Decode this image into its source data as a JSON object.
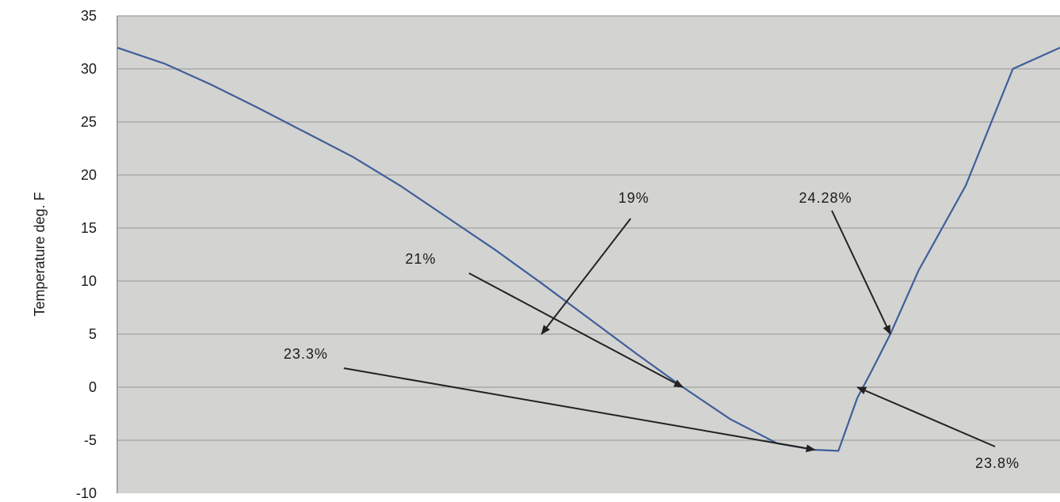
{
  "chart_data": {
    "type": "line",
    "title": "",
    "xlabel": "",
    "ylabel": "Temperature deg. F",
    "ylim": [
      -10,
      35
    ],
    "yticks": [
      "35",
      "30",
      "25",
      "20",
      "15",
      "10",
      "5",
      "0",
      "-5",
      "-10"
    ],
    "grid": true,
    "colors": {
      "background": "#d3d3d1",
      "grid": "#a9a9a7",
      "line": "#3e5f9a",
      "arrow": "#222222"
    },
    "series": [
      {
        "x": [
          0,
          0.05,
          0.1,
          0.15,
          0.2,
          0.25,
          0.3,
          0.35,
          0.4,
          0.45,
          0.5,
          0.55,
          0.6,
          0.65,
          0.7,
          0.74,
          0.765,
          0.785,
          0.8,
          0.82,
          0.85,
          0.9,
          0.95,
          1.0
        ],
        "values": [
          32,
          30.5,
          28.5,
          26.3,
          24,
          21.7,
          19,
          16,
          13,
          9.8,
          6.5,
          3.2,
          0,
          -3,
          -5.3,
          -5.9,
          -6,
          -1,
          1.5,
          5,
          11,
          19,
          30,
          32
        ]
      }
    ],
    "annotations": [
      {
        "text": "19%",
        "x": 0.45,
        "y": 5
      },
      {
        "text": "24.28%",
        "x": 0.82,
        "y": 5
      },
      {
        "text": "21%",
        "x": 0.6,
        "y": 0
      },
      {
        "text": "23.3%",
        "x": 0.74,
        "y": -5.9
      },
      {
        "text": "23.8%",
        "x": 0.785,
        "y": 0
      }
    ]
  }
}
